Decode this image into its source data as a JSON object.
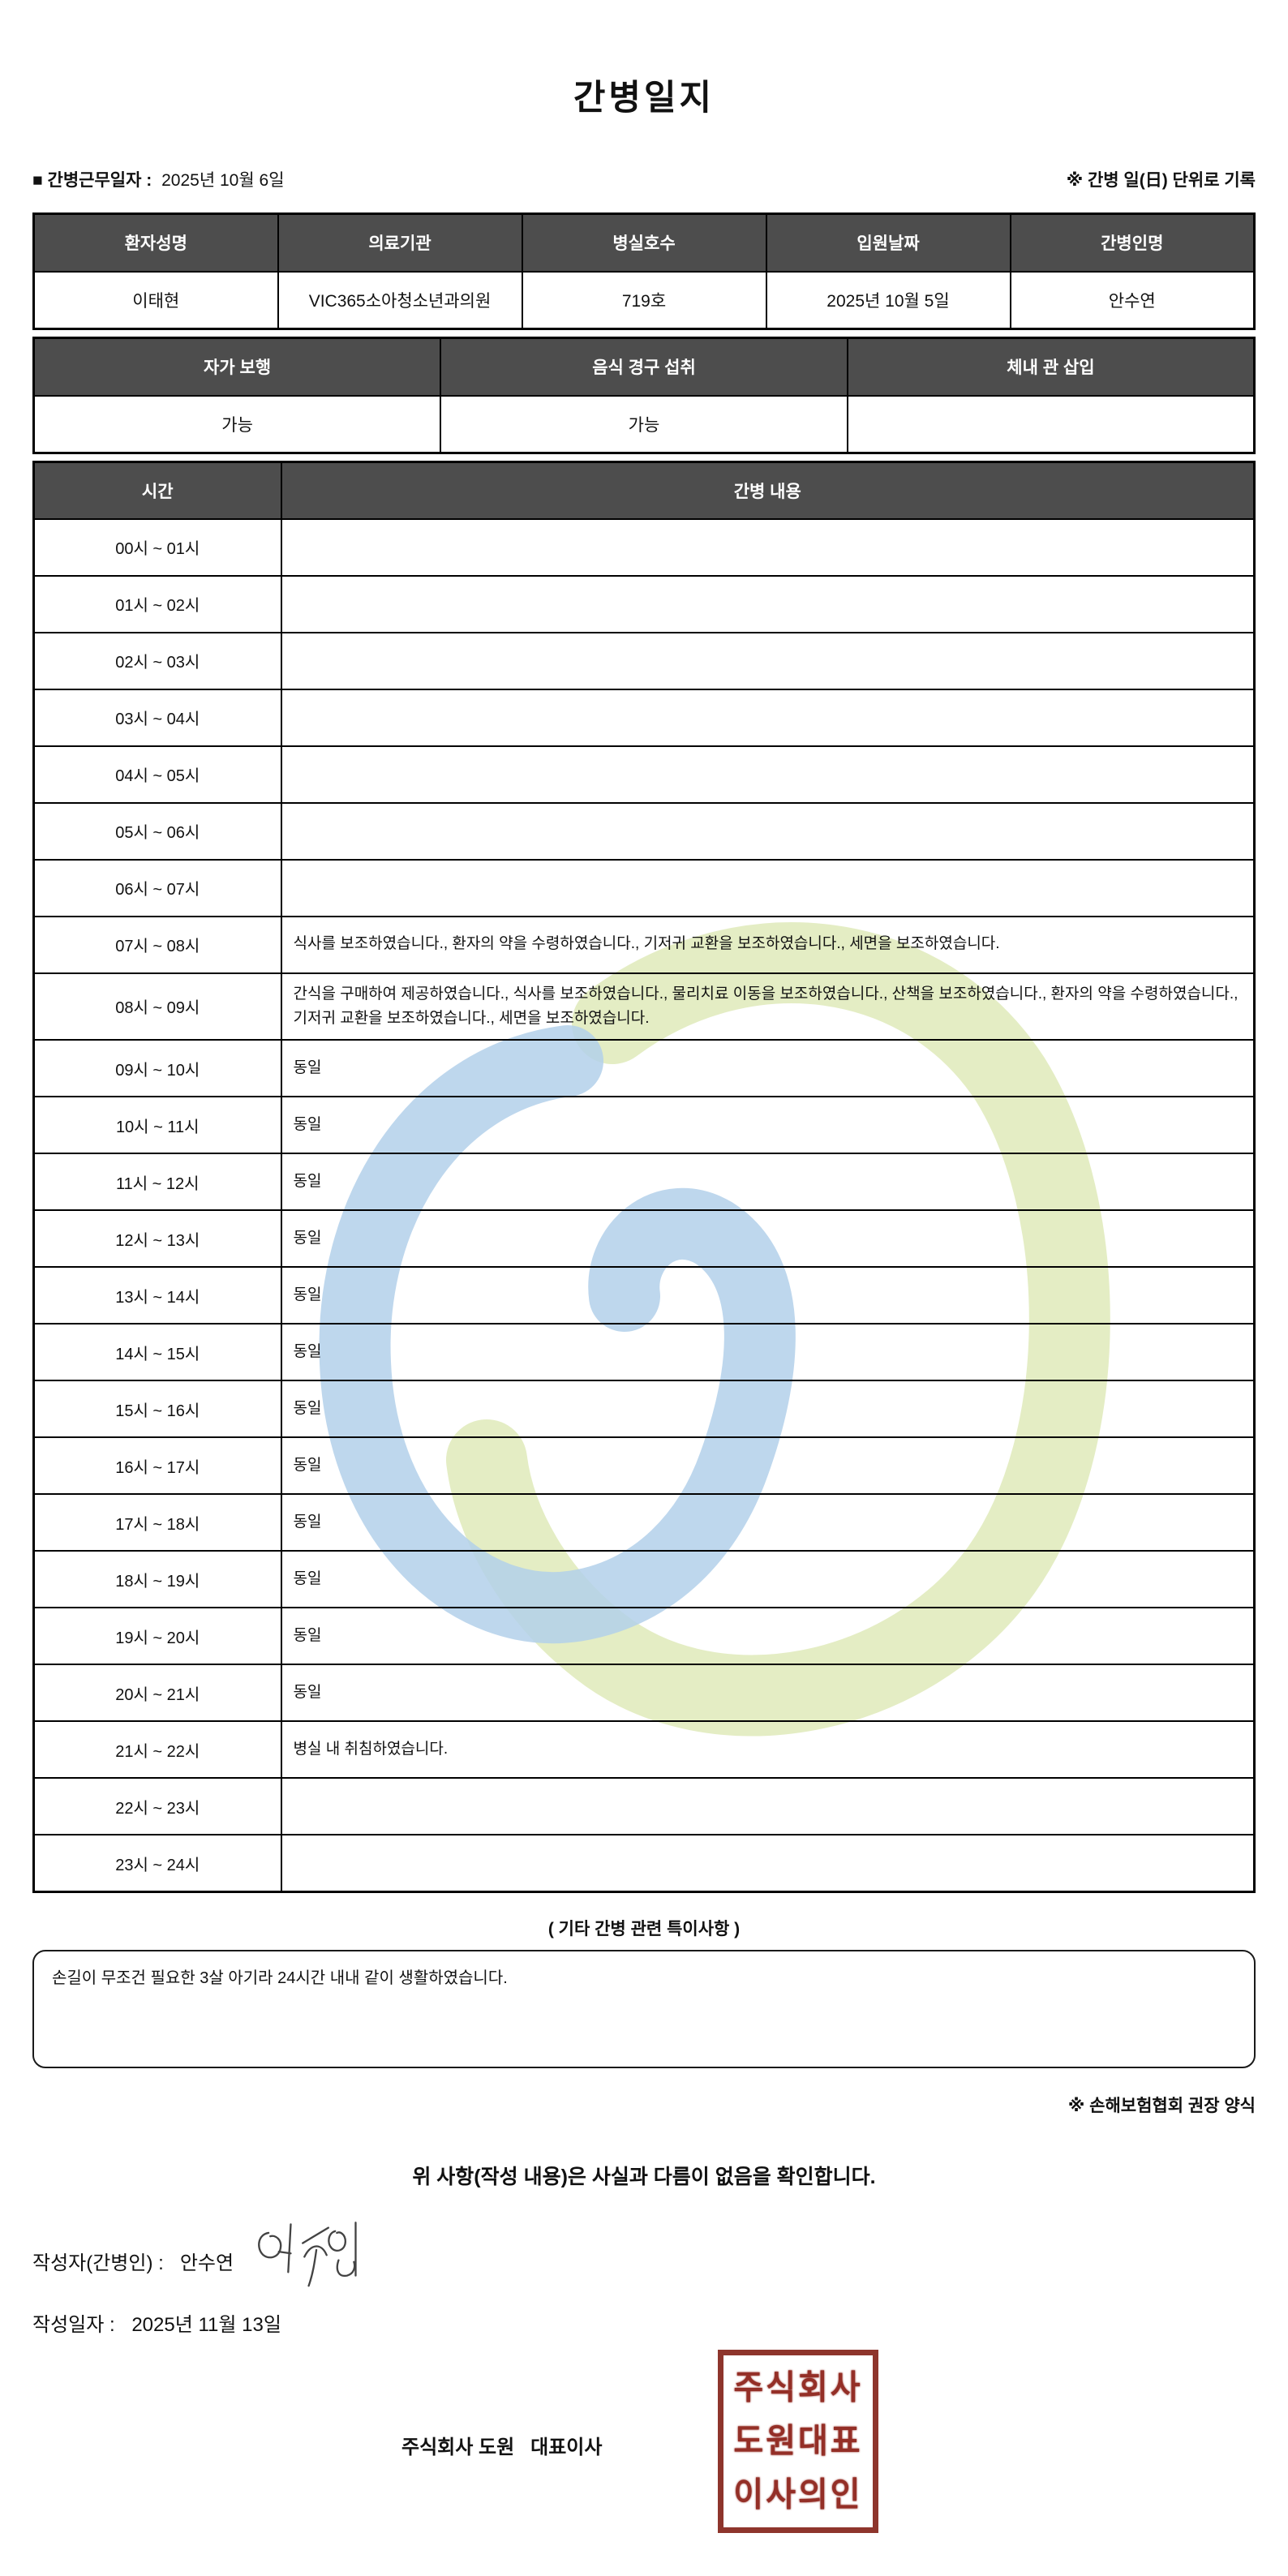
{
  "document": {
    "title": "간병일지",
    "meta_left_label": "■ 간병근무일자 :",
    "meta_left_value": "2025년 10월 6일",
    "meta_right": "※ 간병 일(日) 단위로 기록"
  },
  "info_table": {
    "headers": [
      "환자성명",
      "의료기관",
      "병실호수",
      "입원날짜",
      "간병인명"
    ],
    "values": [
      "이태현",
      "VIC365소아청소년과의원",
      "719호",
      "2025년 10월 5일",
      "안수연"
    ]
  },
  "status_table": {
    "headers": [
      "자가 보행",
      "음식 경구 섭취",
      "체내 관 삽입"
    ],
    "values": [
      "가능",
      "가능",
      ""
    ]
  },
  "care_table": {
    "time_header": "시간",
    "content_header": "간병 내용",
    "rows": [
      {
        "time": "00시 ~ 01시",
        "content": ""
      },
      {
        "time": "01시 ~ 02시",
        "content": ""
      },
      {
        "time": "02시 ~ 03시",
        "content": ""
      },
      {
        "time": "03시 ~ 04시",
        "content": ""
      },
      {
        "time": "04시 ~ 05시",
        "content": ""
      },
      {
        "time": "05시 ~ 06시",
        "content": ""
      },
      {
        "time": "06시 ~ 07시",
        "content": ""
      },
      {
        "time": "07시 ~ 08시",
        "content": "식사를 보조하였습니다., 환자의 약을 수령하였습니다., 기저귀 교환을 보조하였습니다., 세면을 보조하였습니다."
      },
      {
        "time": "08시 ~ 09시",
        "content": "간식을 구매하여 제공하였습니다., 식사를 보조하였습니다., 물리치료 이동을 보조하였습니다., 산책을 보조하였습니다., 환자의 약을 수령하였습니다., 기저귀 교환을 보조하였습니다., 세면을 보조하였습니다."
      },
      {
        "time": "09시 ~ 10시",
        "content": "동일"
      },
      {
        "time": "10시 ~ 11시",
        "content": "동일"
      },
      {
        "time": "11시 ~ 12시",
        "content": "동일"
      },
      {
        "time": "12시 ~ 13시",
        "content": "동일"
      },
      {
        "time": "13시 ~ 14시",
        "content": "동일"
      },
      {
        "time": "14시 ~ 15시",
        "content": "동일"
      },
      {
        "time": "15시 ~ 16시",
        "content": "동일"
      },
      {
        "time": "16시 ~ 17시",
        "content": "동일"
      },
      {
        "time": "17시 ~ 18시",
        "content": "동일"
      },
      {
        "time": "18시 ~ 19시",
        "content": "동일"
      },
      {
        "time": "19시 ~ 20시",
        "content": "동일"
      },
      {
        "time": "20시 ~ 21시",
        "content": "동일"
      },
      {
        "time": "21시 ~ 22시",
        "content": "병실 내 취침하였습니다."
      },
      {
        "time": "22시 ~ 23시",
        "content": ""
      },
      {
        "time": "23시 ~ 24시",
        "content": ""
      }
    ]
  },
  "notes": {
    "heading": "( 기타 간병 관련 특이사항 )",
    "content": "손길이 무조건 필요한 3살 아기라 24시간 내내 같이 생활하였습니다.",
    "form_note": "※ 손해보험협회 권장 양식"
  },
  "footer": {
    "confirmation": "위 사항(작성 내용)은 사실과 다름이 없음을 확인합니다.",
    "writer_label": "작성자(간병인) :",
    "writer_name": "안수연",
    "date_label": "작성일자 :",
    "date_value": "2025년 11월 13일",
    "company_line": "주식회사 도원   대표이사",
    "seal_lines": [
      "주식회사",
      "도원대표",
      "이사의인"
    ]
  },
  "colors": {
    "header_bg": "#4d4d4d",
    "header_text": "#ffffff",
    "border": "#000000",
    "seal_red": "#942f27",
    "watermark_blue": "#b3d0ea",
    "watermark_green": "#dde9b5"
  }
}
